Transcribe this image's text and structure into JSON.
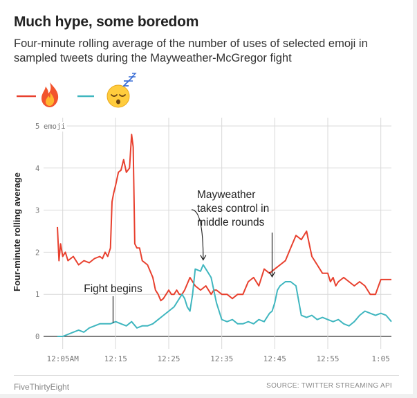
{
  "header": {
    "title": "Much hype, some boredom",
    "subtitle": "Four-minute rolling average of the number of uses of selected emoji in sampled tweets during the Mayweather-McGregor fight"
  },
  "footer": {
    "credit": "FiveThirtyEight",
    "source": "SOURCE: TWITTER STREAMING API"
  },
  "colors": {
    "fire": "#e8402e",
    "sleepy": "#3fb6bf",
    "grid": "#d9d9d9",
    "axis": "#333333"
  },
  "chart_data": {
    "type": "line",
    "ylabel": "Four-minute rolling average",
    "ylim": [
      0,
      5
    ],
    "ytick_unit_label": "emoji",
    "yticks": [
      0,
      1,
      2,
      3,
      4,
      5
    ],
    "xlim_minutes": [
      0,
      63
    ],
    "xticks": [
      {
        "label": "12:05AM",
        "x": 1
      },
      {
        "label": "12:15",
        "x": 11
      },
      {
        "label": "12:25",
        "x": 21
      },
      {
        "label": "12:35",
        "x": 31
      },
      {
        "label": "12:45",
        "x": 41
      },
      {
        "label": "12:55",
        "x": 51
      },
      {
        "label": "1:05",
        "x": 61
      }
    ],
    "legend": [
      {
        "series": "fire",
        "symbol": "🔥"
      },
      {
        "series": "sleepy",
        "symbol": "😴"
      }
    ],
    "annotations": [
      {
        "text": "Fight begins",
        "x": 10.5,
        "y": 0.35
      },
      {
        "text": "Mayweather takes control in middle rounds",
        "x": 27.5,
        "y": 1.75,
        "x2": 40.5,
        "y2": 1.35
      }
    ],
    "series": [
      {
        "id": "fire",
        "x": [
          0,
          0.3,
          0.6,
          1,
          1.5,
          2,
          3,
          4,
          5,
          6,
          7,
          8,
          8.5,
          9,
          9.5,
          10,
          10.3,
          10.6,
          11,
          11.5,
          12,
          12.5,
          13,
          13.3,
          13.6,
          14,
          14.3,
          14.6,
          15,
          15.5,
          16,
          17,
          18,
          18.5,
          19,
          19.5,
          20,
          20.5,
          21,
          21.5,
          22,
          22.5,
          23,
          23.5,
          24,
          25,
          26,
          27,
          28,
          29,
          29.5,
          30,
          31,
          32,
          33,
          34,
          35,
          36,
          37,
          38,
          39,
          40,
          41,
          42,
          43,
          44,
          45,
          46,
          47,
          48,
          49,
          50,
          51,
          51.5,
          52,
          52.5,
          53,
          54,
          55,
          56,
          57,
          58,
          59,
          60,
          61,
          62,
          63
        ],
        "y": [
          2.6,
          1.8,
          2.2,
          1.9,
          2.0,
          1.8,
          1.9,
          1.7,
          1.8,
          1.75,
          1.85,
          1.9,
          1.85,
          2.0,
          1.9,
          2.1,
          3.2,
          3.4,
          3.6,
          3.9,
          3.95,
          4.2,
          3.9,
          3.95,
          4.0,
          4.8,
          4.5,
          2.2,
          2.1,
          2.1,
          1.8,
          1.7,
          1.4,
          1.1,
          1.0,
          0.85,
          0.9,
          1.0,
          1.1,
          1.0,
          1.0,
          1.1,
          1.0,
          1.0,
          1.1,
          1.4,
          1.2,
          1.1,
          1.2,
          1.0,
          1.1,
          1.1,
          1.0,
          1.0,
          0.9,
          1.0,
          1.0,
          1.3,
          1.4,
          1.2,
          1.6,
          1.5,
          1.6,
          1.7,
          1.8,
          2.1,
          2.4,
          2.3,
          2.5,
          1.9,
          1.7,
          1.5,
          1.5,
          1.3,
          1.4,
          1.2,
          1.3,
          1.4,
          1.3,
          1.2,
          1.3,
          1.2,
          1.0,
          1.0,
          1.35,
          1.35,
          1.35
        ],
        "color": "#e8402e"
      },
      {
        "id": "sleepy",
        "x": [
          0,
          1,
          2,
          3,
          4,
          5,
          6,
          7,
          8,
          9,
          10,
          11,
          12,
          13,
          14,
          15,
          16,
          17,
          18,
          19,
          20,
          21,
          22,
          23,
          23.5,
          24,
          24.5,
          25,
          25.5,
          26,
          27,
          27.5,
          28,
          29,
          30,
          31,
          32,
          33,
          34,
          35,
          36,
          37,
          38,
          39,
          40,
          40.5,
          41,
          41.5,
          42,
          43,
          44,
          45,
          46,
          47,
          48,
          49,
          50,
          51,
          52,
          53,
          54,
          55,
          56,
          57,
          58,
          59,
          60,
          61,
          62,
          63
        ],
        "y": [
          0.0,
          0.0,
          0.05,
          0.1,
          0.15,
          0.1,
          0.2,
          0.25,
          0.3,
          0.3,
          0.3,
          0.35,
          0.3,
          0.25,
          0.35,
          0.2,
          0.25,
          0.25,
          0.3,
          0.4,
          0.5,
          0.6,
          0.7,
          0.9,
          1.0,
          0.9,
          0.7,
          0.6,
          1.0,
          1.6,
          1.55,
          1.7,
          1.6,
          1.4,
          0.8,
          0.4,
          0.35,
          0.4,
          0.3,
          0.3,
          0.35,
          0.3,
          0.4,
          0.35,
          0.55,
          0.6,
          0.8,
          1.1,
          1.2,
          1.3,
          1.3,
          1.2,
          0.5,
          0.45,
          0.5,
          0.4,
          0.45,
          0.4,
          0.35,
          0.4,
          0.3,
          0.25,
          0.35,
          0.5,
          0.6,
          0.55,
          0.5,
          0.55,
          0.5,
          0.35
        ],
        "color": "#3fb6bf"
      }
    ]
  }
}
